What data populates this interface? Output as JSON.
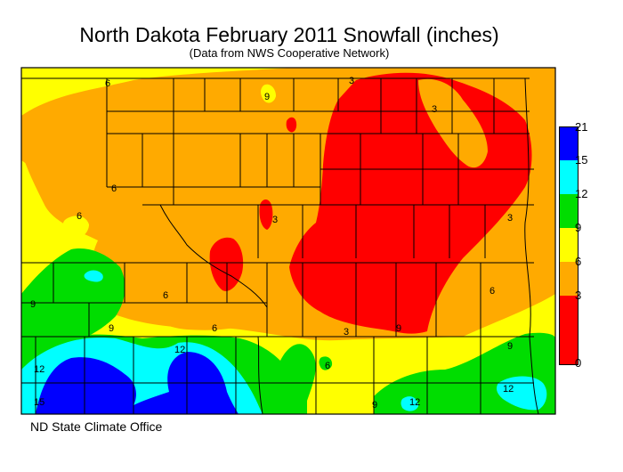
{
  "title": "North Dakota February 2011 Snowfall (inches)",
  "subtitle": "(Data from NWS Cooperative Network)",
  "credit": "ND State Climate Office",
  "legend": {
    "ticks": [
      "21",
      "15",
      "12",
      "9",
      "6",
      "3",
      "0"
    ],
    "bins": [
      {
        "range": "0-3",
        "color": "#ff0000"
      },
      {
        "range": "3-6",
        "color": "#ffaa00"
      },
      {
        "range": "6-9",
        "color": "#ffff00"
      },
      {
        "range": "9-12",
        "color": "#00dd00"
      },
      {
        "range": "12-15",
        "color": "#00ffff"
      },
      {
        "range": "15-21",
        "color": "#0000ff"
      }
    ]
  },
  "contour_labels": [
    "6",
    "3",
    "9",
    "3",
    "6",
    "6",
    "3",
    "3",
    "6",
    "9",
    "6",
    "9",
    "9",
    "12",
    "12",
    "15",
    "6",
    "9",
    "12",
    "9",
    "12",
    "3",
    "6"
  ]
}
